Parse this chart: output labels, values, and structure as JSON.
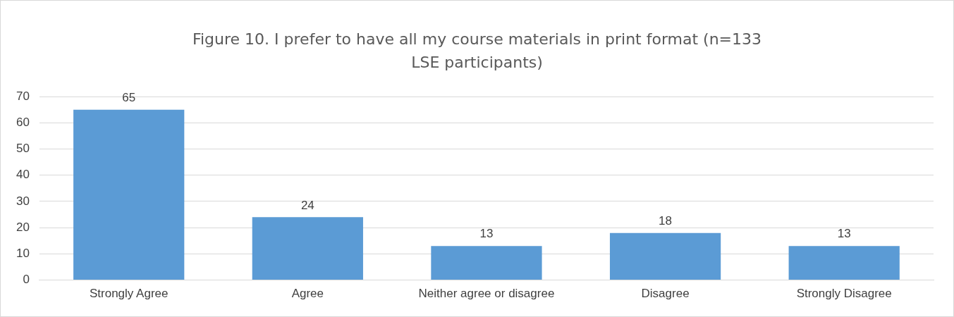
{
  "chart_data": {
    "type": "bar",
    "title": "Figure 10. I prefer to have all my course materials in print format (n=133 LSE participants)",
    "categories": [
      "Strongly Agree",
      "Agree",
      "Neither agree or disagree",
      "Disagree",
      "Strongly Disagree"
    ],
    "values": [
      65,
      24,
      13,
      18,
      13
    ],
    "color": "#5b9bd5",
    "ylim": [
      0,
      70
    ],
    "yticks": [
      0,
      10,
      20,
      30,
      40,
      50,
      60,
      70
    ],
    "grid": "y",
    "data_labels": true
  }
}
